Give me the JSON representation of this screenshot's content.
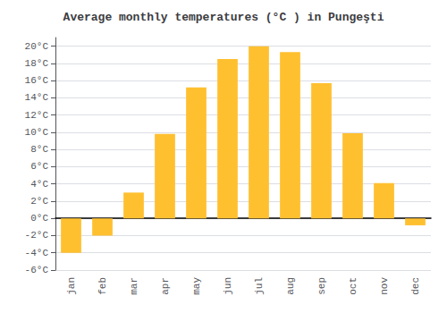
{
  "chart_data": {
    "type": "bar",
    "title": "Average monthly temperatures (°C ) in Pungeşti",
    "categories": [
      "jan",
      "feb",
      "mar",
      "apr",
      "may",
      "jun",
      "jul",
      "aug",
      "sep",
      "oct",
      "nov",
      "dec"
    ],
    "values": [
      -4.0,
      -2.0,
      3.0,
      9.8,
      15.2,
      18.5,
      20.0,
      19.3,
      15.7,
      9.9,
      4.1,
      -0.8
    ],
    "color": "#FFC030",
    "ylim": [
      -6,
      21
    ],
    "yticks": [
      {
        "value": -6,
        "label": "-6°C"
      },
      {
        "value": -4,
        "label": "-4°C"
      },
      {
        "value": -2,
        "label": "-2°C"
      },
      {
        "value": 0,
        "label": "0°C"
      },
      {
        "value": 2,
        "label": "2°C"
      },
      {
        "value": 4,
        "label": "4°C"
      },
      {
        "value": 6,
        "label": "6°C"
      },
      {
        "value": 8,
        "label": "8°C"
      },
      {
        "value": 10,
        "label": "10°C"
      },
      {
        "value": 12,
        "label": "12°C"
      },
      {
        "value": 14,
        "label": "14°C"
      },
      {
        "value": 16,
        "label": "16°C"
      },
      {
        "value": 18,
        "label": "18°C"
      },
      {
        "value": 20,
        "label": "20°C"
      }
    ],
    "grid": true
  }
}
